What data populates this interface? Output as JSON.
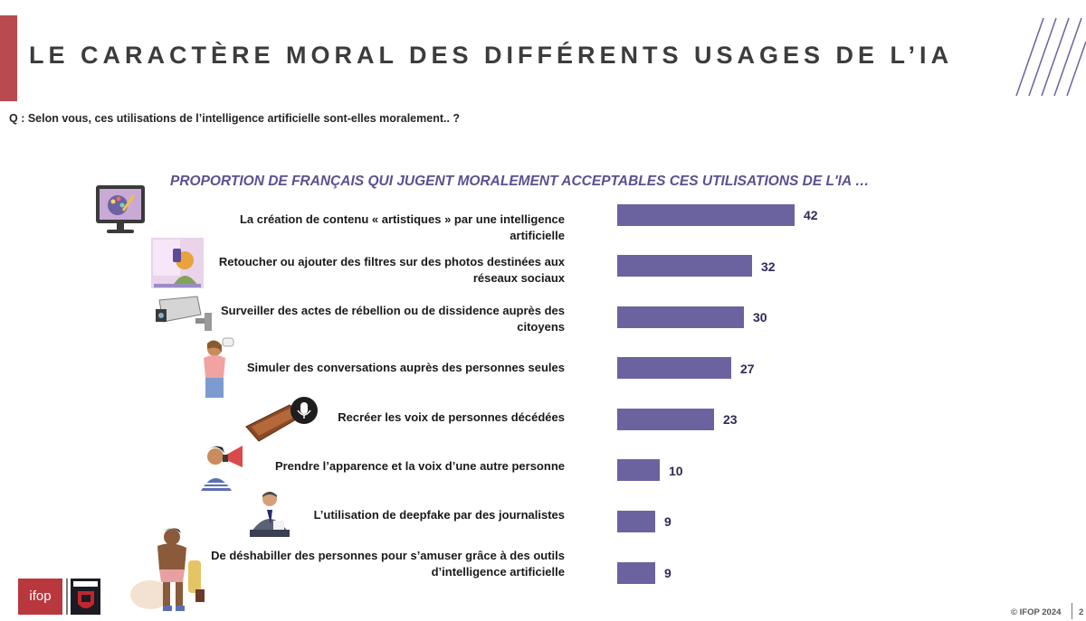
{
  "title": "LE CARACTÈRE MORAL DES DIFFÉRENTS USAGES DE L’IA",
  "question": "Q : Selon vous, ces utilisations de l’intelligence artificielle sont-elles moralement.. ?",
  "chart_data": {
    "type": "bar",
    "orientation": "horizontal",
    "title": "PROPORTION DE FRANÇAIS QUI JUGENT MORALEMENT ACCEPTABLES CES UTILISATIONS DE L'IA …",
    "categories": [
      "La création de contenu « artistiques » par une intelligence artificielle",
      "Retoucher ou ajouter des filtres sur des photos destinées aux réseaux sociaux",
      "Surveiller des actes de rébellion ou de dissidence auprès des citoyens",
      "Simuler des conversations auprès des personnes seules",
      "Recréer les voix de personnes décédées",
      "Prendre l’apparence et la voix d’une autre personne",
      "L’utilisation de deepfake par des journalistes",
      "De déshabiller des personnes pour s’amuser grâce à des outils d’intelligence artificielle"
    ],
    "values": [
      42,
      32,
      30,
      27,
      23,
      10,
      9,
      9
    ],
    "bar_color": "#6b63a0",
    "value_color": "#2c2a59"
  },
  "rows": [
    {
      "label_lines": [
        "La création de contenu « artistiques » par une intelligence artificielle"
      ],
      "icon": "computer-paint-icon"
    },
    {
      "label_lines": [
        "Retoucher ou ajouter des filtres sur des photos destinées aux",
        "réseaux sociaux"
      ],
      "icon": "selfie-photo-icon"
    },
    {
      "label_lines": [
        "Surveiller des actes de rébellion ou de dissidence auprès des",
        "citoyens"
      ],
      "icon": "surveillance-camera-icon"
    },
    {
      "label_lines": [
        "Simuler des conversations auprès des personnes seules"
      ],
      "icon": "woman-talking-icon"
    },
    {
      "label_lines": [
        "Recréer les voix de personnes décédées"
      ],
      "icon": "coffin-microphone-icon"
    },
    {
      "label_lines": [
        "Prendre l’apparence et la voix d’une autre personne"
      ],
      "icon": "megaphone-person-icon"
    },
    {
      "label_lines": [
        "L’utilisation de deepfake par des journalistes"
      ],
      "icon": "news-anchor-icon"
    },
    {
      "label_lines": [
        "De déshabiller des personnes pour s’amuser grâce à des outils",
        "d’intelligence artificielle"
      ],
      "icon": "undressed-person-icon"
    }
  ],
  "footer": {
    "logo_text": "ifop",
    "copyright": "© IFOP 2024",
    "page_number": "2"
  },
  "colors": {
    "accent": "#b94a4f",
    "subtitle": "#5a5191"
  }
}
